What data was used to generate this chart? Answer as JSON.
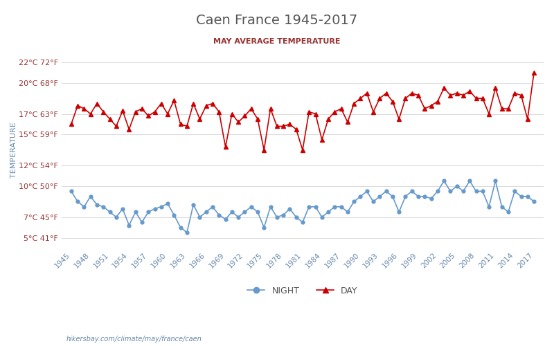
{
  "title": "Caen France 1945-2017",
  "subtitle": "MAY AVERAGE TEMPERATURE",
  "ylabel": "TEMPERATURE",
  "watermark": "hikersbay.com/climate/may/france/caen",
  "years": [
    1945,
    1946,
    1947,
    1948,
    1949,
    1950,
    1951,
    1952,
    1953,
    1954,
    1955,
    1956,
    1957,
    1958,
    1959,
    1960,
    1961,
    1962,
    1963,
    1964,
    1965,
    1966,
    1967,
    1968,
    1969,
    1970,
    1971,
    1972,
    1973,
    1974,
    1975,
    1976,
    1977,
    1978,
    1979,
    1980,
    1981,
    1982,
    1983,
    1984,
    1985,
    1986,
    1987,
    1988,
    1989,
    1990,
    1991,
    1992,
    1993,
    1994,
    1995,
    1996,
    1997,
    1998,
    1999,
    2000,
    2001,
    2002,
    2003,
    2004,
    2005,
    2006,
    2007,
    2008,
    2009,
    2010,
    2011,
    2012,
    2013,
    2014,
    2015,
    2016,
    2017
  ],
  "day_temps": [
    16.0,
    17.8,
    17.5,
    17.0,
    18.0,
    17.2,
    16.5,
    15.8,
    17.3,
    15.5,
    17.2,
    17.5,
    16.8,
    17.2,
    18.0,
    17.0,
    18.3,
    16.0,
    15.8,
    18.0,
    16.5,
    17.8,
    18.0,
    17.2,
    13.8,
    17.0,
    16.2,
    16.8,
    17.5,
    16.5,
    13.5,
    17.5,
    15.8,
    15.8,
    16.0,
    15.5,
    13.5,
    17.2,
    17.0,
    14.5,
    16.5,
    17.2,
    17.5,
    16.2,
    18.0,
    18.5,
    19.0,
    17.2,
    18.5,
    19.0,
    18.2,
    16.5,
    18.5,
    19.0,
    18.8,
    17.5,
    17.8,
    18.2,
    19.5,
    18.8,
    19.0,
    18.8,
    19.2,
    18.5,
    18.5,
    17.0,
    19.5,
    17.5,
    17.5,
    19.0,
    18.8,
    16.5,
    21.0
  ],
  "night_temps": [
    9.5,
    8.5,
    8.0,
    9.0,
    8.2,
    8.0,
    7.5,
    7.0,
    7.8,
    6.2,
    7.5,
    6.5,
    7.5,
    7.8,
    8.0,
    8.3,
    7.2,
    6.0,
    5.5,
    8.2,
    7.0,
    7.5,
    8.0,
    7.2,
    6.8,
    7.5,
    7.0,
    7.5,
    8.0,
    7.5,
    6.0,
    8.0,
    7.0,
    7.2,
    7.8,
    7.0,
    6.5,
    8.0,
    8.0,
    7.0,
    7.5,
    8.0,
    8.0,
    7.5,
    8.5,
    9.0,
    9.5,
    8.5,
    9.0,
    9.5,
    9.0,
    7.5,
    9.0,
    9.5,
    9.0,
    9.0,
    8.8,
    9.5,
    10.5,
    9.5,
    10.0,
    9.5,
    10.5,
    9.5,
    9.5,
    8.0,
    10.5,
    8.0,
    7.5,
    9.5,
    9.0,
    9.0,
    8.5
  ],
  "day_color": "#cc0000",
  "night_color": "#6699cc",
  "title_color": "#555555",
  "subtitle_color": "#993333",
  "axis_label_color": "#6688aa",
  "tick_color": "#993333",
  "grid_color": "#dddddd",
  "yticks_c": [
    5,
    7,
    10,
    12,
    15,
    17,
    20,
    22
  ],
  "yticks_f": [
    41,
    45,
    50,
    54,
    59,
    63,
    68,
    72
  ],
  "ymin": 4,
  "ymax": 23,
  "legend_night": "NIGHT",
  "legend_day": "DAY"
}
